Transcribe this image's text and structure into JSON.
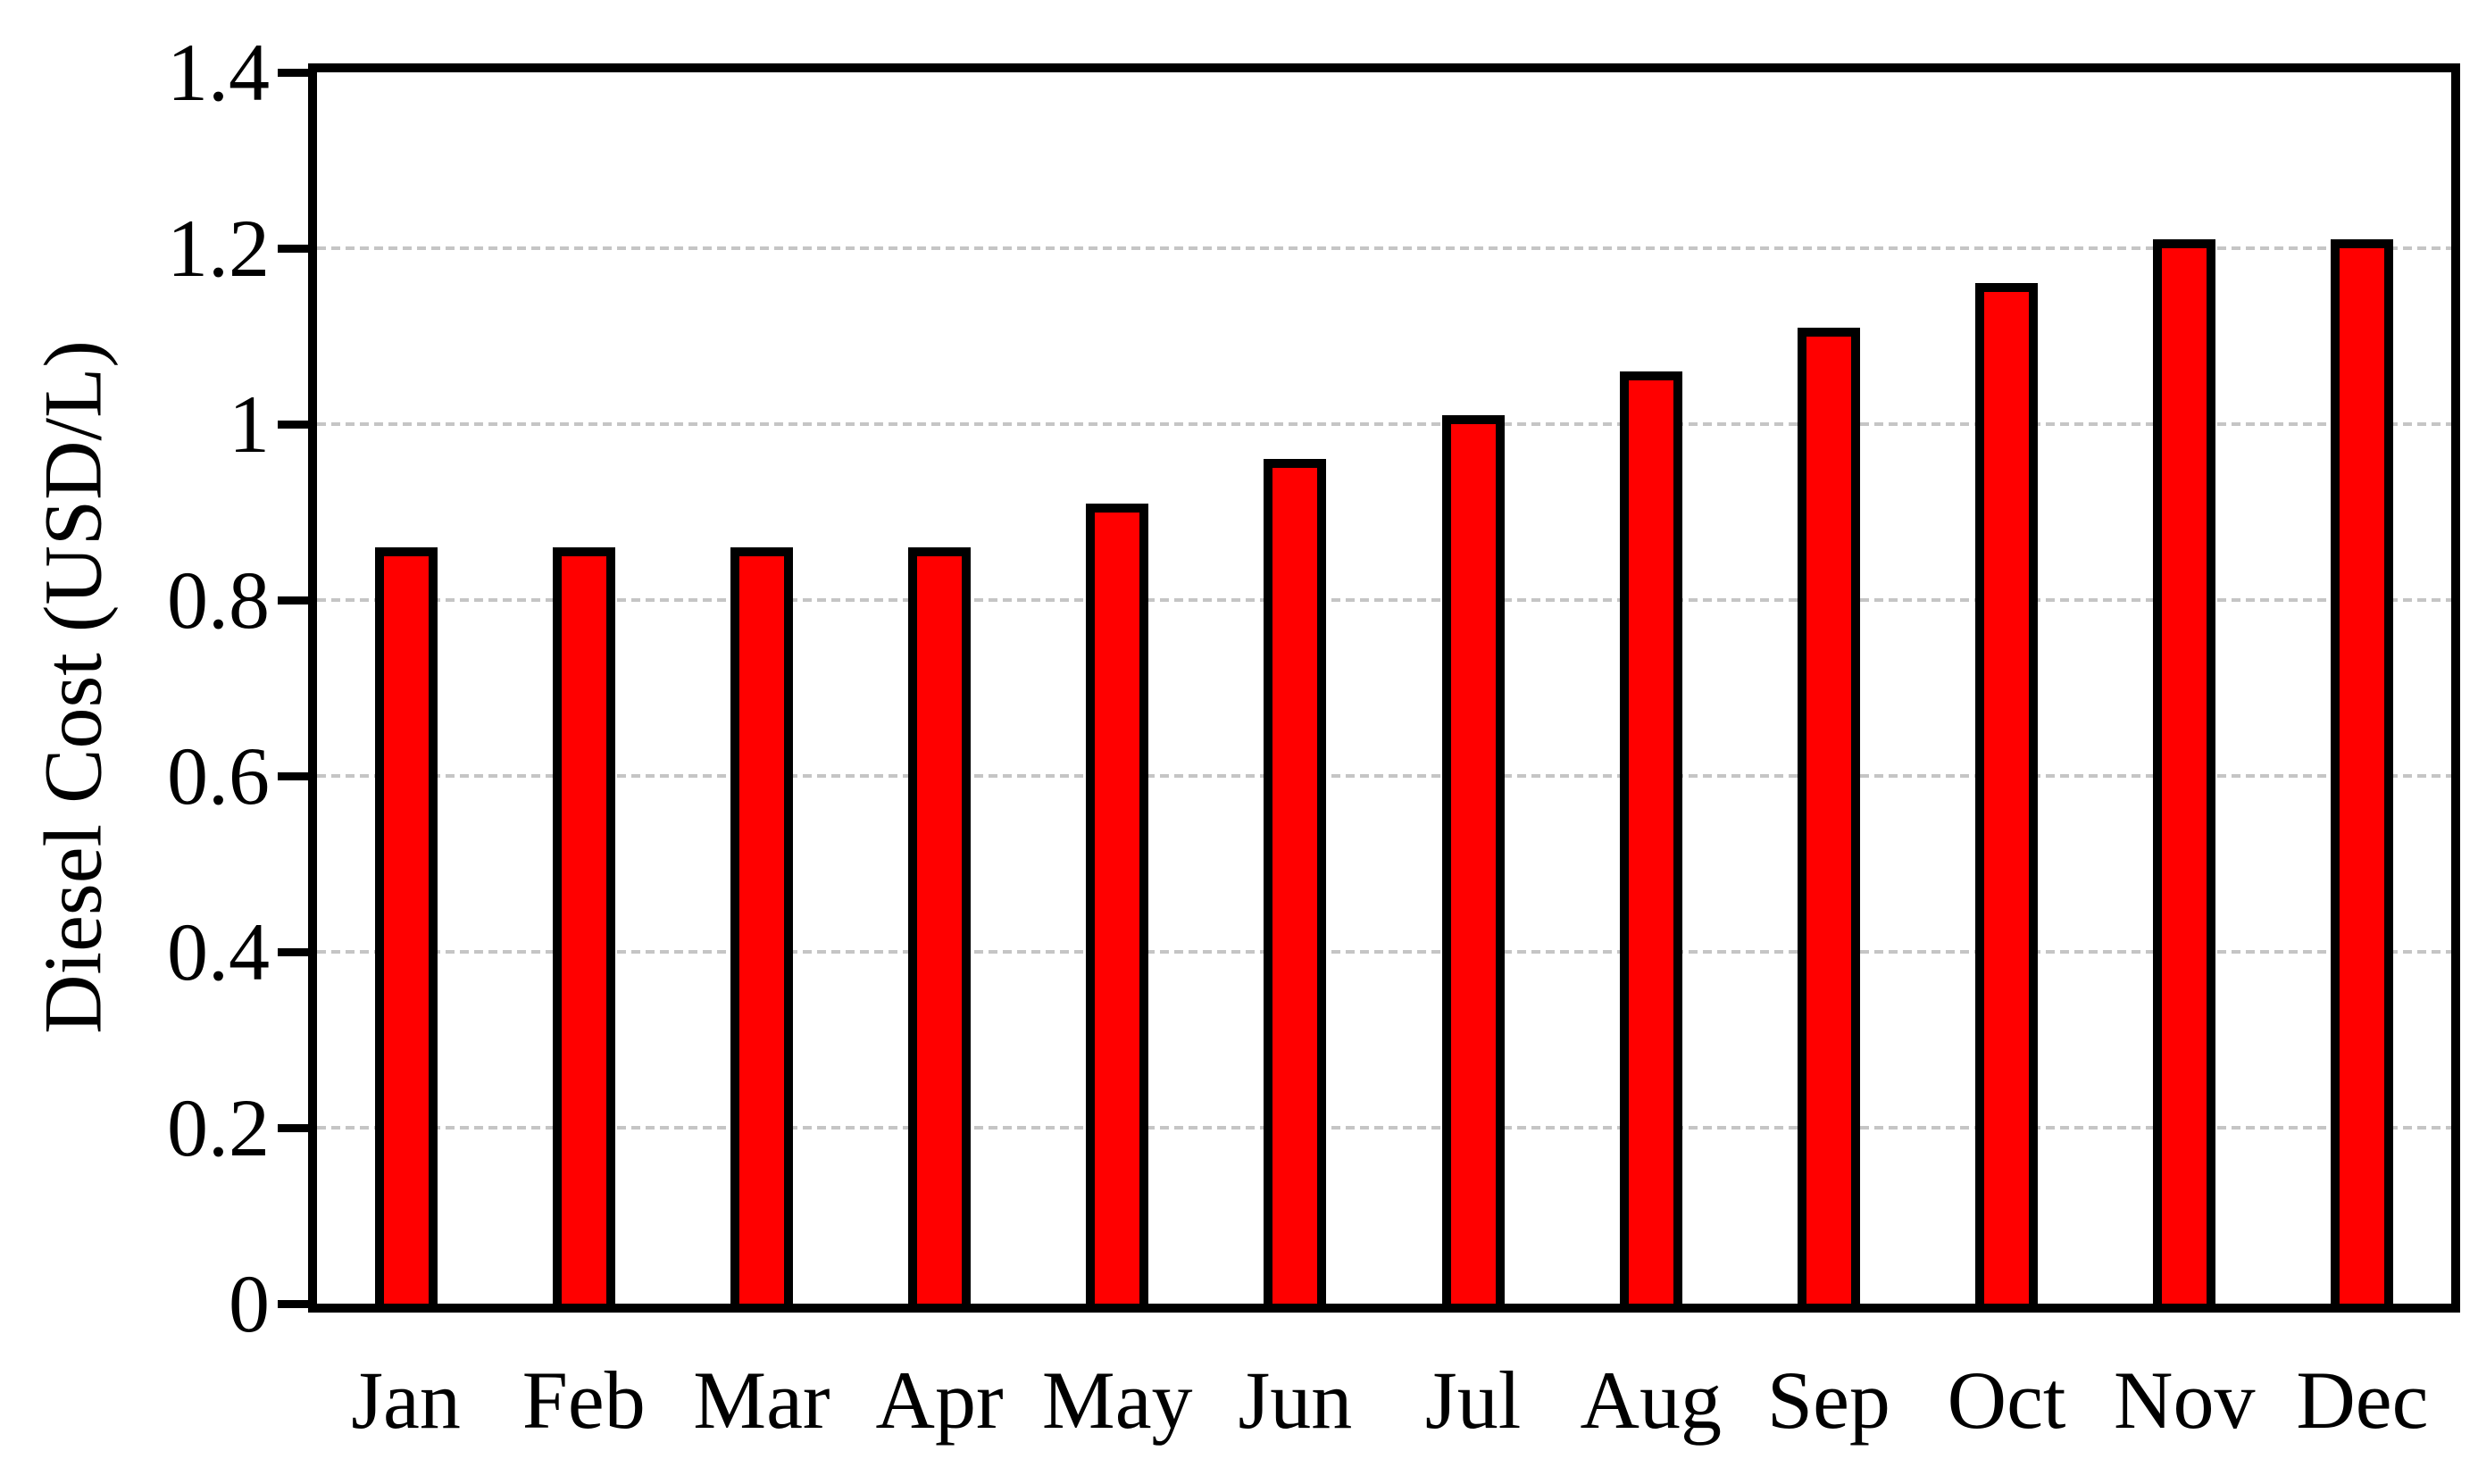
{
  "chart_data": {
    "type": "bar",
    "title": "",
    "categories": [
      "Jan",
      "Feb",
      "Mar",
      "Apr",
      "May",
      "Jun",
      "Jul",
      "Aug",
      "Sep",
      "Oct",
      "Nov",
      "Dec"
    ],
    "values": [
      0.86,
      0.86,
      0.86,
      0.86,
      0.91,
      0.96,
      1.01,
      1.06,
      1.11,
      1.16,
      1.21,
      1.21
    ],
    "xlabel": "",
    "ylabel": "Diesel Cost (USD/L)",
    "ylim": [
      0,
      1.4
    ],
    "ytick_labels": [
      "0",
      "0.2",
      "0.4",
      "0.6",
      "0.8",
      "1",
      "1.2",
      "1.4"
    ],
    "ytick_values": [
      0,
      0.2,
      0.4,
      0.6,
      0.8,
      1,
      1.2,
      1.4
    ],
    "gridline_values": [
      0.2,
      0.4,
      0.6,
      0.8,
      1,
      1.2
    ],
    "grid": "horizontal-dashed",
    "legend": "none",
    "colors": {
      "bar_fill": "#ff0000",
      "bar_border": "#000000",
      "axis": "#000000",
      "gridline": "#c5c5c5",
      "text": "#000000",
      "background": "#ffffff"
    }
  }
}
